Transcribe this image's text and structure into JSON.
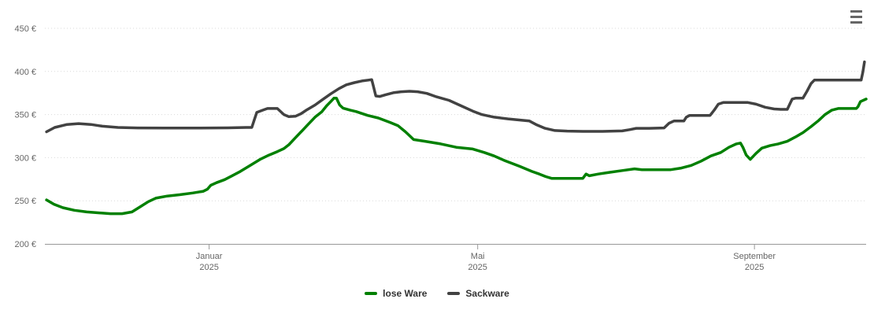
{
  "chart": {
    "menu_icon": "hamburger-icon",
    "background_color": "#ffffff",
    "axis_label_color": "#666666",
    "axis_line_color": "#999999",
    "gridline_color": "#d9d9d9",
    "legend_text_color": "#333333"
  },
  "chart_data": {
    "type": "line",
    "title": "",
    "xlabel": "",
    "ylabel": "",
    "y_unit": "€",
    "ylim": [
      200,
      450
    ],
    "y_ticks": [
      200,
      250,
      300,
      350,
      400,
      450
    ],
    "y_tick_labels": [
      "200 €",
      "250 €",
      "300 €",
      "350 €",
      "400 €",
      "450 €"
    ],
    "grid": "horizontal-dotted",
    "legend_position": "bottom-center",
    "x_ticks": [
      {
        "pos": 0.2,
        "line1": "Januar",
        "line2": "2025"
      },
      {
        "pos": 0.527,
        "line1": "Mai",
        "line2": "2025"
      },
      {
        "pos": 0.864,
        "line1": "September",
        "line2": "2025"
      }
    ],
    "series": [
      {
        "name": "lose Ware",
        "color": "#008000",
        "points": [
          [
            0.002,
            251
          ],
          [
            0.011,
            246
          ],
          [
            0.022,
            242
          ],
          [
            0.036,
            239
          ],
          [
            0.051,
            237
          ],
          [
            0.065,
            236
          ],
          [
            0.08,
            235
          ],
          [
            0.094,
            235
          ],
          [
            0.106,
            237
          ],
          [
            0.116,
            243
          ],
          [
            0.126,
            249
          ],
          [
            0.135,
            253
          ],
          [
            0.149,
            255.5
          ],
          [
            0.164,
            257
          ],
          [
            0.18,
            259
          ],
          [
            0.193,
            261
          ],
          [
            0.198,
            263.5
          ],
          [
            0.202,
            268
          ],
          [
            0.209,
            271
          ],
          [
            0.219,
            274.5
          ],
          [
            0.228,
            279
          ],
          [
            0.238,
            284
          ],
          [
            0.25,
            291
          ],
          [
            0.262,
            298
          ],
          [
            0.273,
            303
          ],
          [
            0.283,
            307
          ],
          [
            0.291,
            310.5
          ],
          [
            0.297,
            315
          ],
          [
            0.305,
            323
          ],
          [
            0.313,
            331
          ],
          [
            0.319,
            337
          ],
          [
            0.329,
            347
          ],
          [
            0.337,
            353
          ],
          [
            0.343,
            360
          ],
          [
            0.348,
            365
          ],
          [
            0.352,
            369
          ],
          [
            0.355,
            369
          ],
          [
            0.359,
            361
          ],
          [
            0.363,
            357.5
          ],
          [
            0.372,
            355
          ],
          [
            0.379,
            353.5
          ],
          [
            0.393,
            349
          ],
          [
            0.406,
            346
          ],
          [
            0.42,
            341
          ],
          [
            0.43,
            337
          ],
          [
            0.439,
            330
          ],
          [
            0.449,
            321
          ],
          [
            0.463,
            319
          ],
          [
            0.482,
            316
          ],
          [
            0.501,
            312
          ],
          [
            0.521,
            310
          ],
          [
            0.535,
            306
          ],
          [
            0.547,
            302
          ],
          [
            0.559,
            297
          ],
          [
            0.578,
            290
          ],
          [
            0.593,
            284
          ],
          [
            0.602,
            281
          ],
          [
            0.61,
            278
          ],
          [
            0.617,
            276
          ],
          [
            0.636,
            276
          ],
          [
            0.655,
            276
          ],
          [
            0.659,
            281
          ],
          [
            0.663,
            279
          ],
          [
            0.674,
            281
          ],
          [
            0.688,
            283
          ],
          [
            0.703,
            285
          ],
          [
            0.718,
            287
          ],
          [
            0.727,
            286
          ],
          [
            0.746,
            286
          ],
          [
            0.762,
            286
          ],
          [
            0.775,
            288
          ],
          [
            0.787,
            291
          ],
          [
            0.799,
            296
          ],
          [
            0.811,
            302
          ],
          [
            0.823,
            306
          ],
          [
            0.833,
            312
          ],
          [
            0.842,
            316
          ],
          [
            0.847,
            317
          ],
          [
            0.85,
            312
          ],
          [
            0.854,
            303
          ],
          [
            0.859,
            298
          ],
          [
            0.866,
            305
          ],
          [
            0.873,
            311
          ],
          [
            0.883,
            314
          ],
          [
            0.893,
            316
          ],
          [
            0.904,
            319
          ],
          [
            0.914,
            324
          ],
          [
            0.923,
            329
          ],
          [
            0.933,
            336
          ],
          [
            0.942,
            343
          ],
          [
            0.95,
            350
          ],
          [
            0.958,
            355
          ],
          [
            0.966,
            357
          ],
          [
            0.981,
            357
          ],
          [
            0.988,
            357
          ],
          [
            0.99,
            359
          ],
          [
            0.993,
            365
          ],
          [
            1.0,
            368
          ]
        ]
      },
      {
        "name": "Sackware",
        "color": "#424242",
        "points": [
          [
            0.002,
            330
          ],
          [
            0.012,
            335
          ],
          [
            0.027,
            338.5
          ],
          [
            0.041,
            339.5
          ],
          [
            0.056,
            338.5
          ],
          [
            0.07,
            336.5
          ],
          [
            0.089,
            335
          ],
          [
            0.113,
            334.5
          ],
          [
            0.147,
            334.3
          ],
          [
            0.185,
            334.3
          ],
          [
            0.223,
            334.6
          ],
          [
            0.245,
            335
          ],
          [
            0.252,
            335
          ],
          [
            0.255,
            344
          ],
          [
            0.258,
            352.5
          ],
          [
            0.265,
            355
          ],
          [
            0.271,
            357
          ],
          [
            0.283,
            357
          ],
          [
            0.291,
            350
          ],
          [
            0.297,
            347.5
          ],
          [
            0.305,
            348
          ],
          [
            0.312,
            351
          ],
          [
            0.319,
            355.5
          ],
          [
            0.329,
            361
          ],
          [
            0.339,
            368
          ],
          [
            0.348,
            374
          ],
          [
            0.358,
            380
          ],
          [
            0.367,
            384.5
          ],
          [
            0.377,
            387
          ],
          [
            0.386,
            389
          ],
          [
            0.394,
            390
          ],
          [
            0.398,
            390.5
          ],
          [
            0.4,
            383
          ],
          [
            0.403,
            371.5
          ],
          [
            0.408,
            371
          ],
          [
            0.415,
            373
          ],
          [
            0.425,
            375.5
          ],
          [
            0.434,
            376.5
          ],
          [
            0.444,
            377
          ],
          [
            0.454,
            376.5
          ],
          [
            0.465,
            374.5
          ],
          [
            0.477,
            370.5
          ],
          [
            0.492,
            366.5
          ],
          [
            0.506,
            360.5
          ],
          [
            0.521,
            354
          ],
          [
            0.532,
            350
          ],
          [
            0.547,
            347
          ],
          [
            0.564,
            345
          ],
          [
            0.58,
            343.5
          ],
          [
            0.59,
            342.5
          ],
          [
            0.599,
            338
          ],
          [
            0.609,
            334
          ],
          [
            0.621,
            331.5
          ],
          [
            0.636,
            330.8
          ],
          [
            0.655,
            330.5
          ],
          [
            0.679,
            330.5
          ],
          [
            0.703,
            331
          ],
          [
            0.712,
            332.5
          ],
          [
            0.72,
            334
          ],
          [
            0.736,
            334
          ],
          [
            0.754,
            334.5
          ],
          [
            0.76,
            340
          ],
          [
            0.766,
            342.5
          ],
          [
            0.778,
            342.5
          ],
          [
            0.781,
            347
          ],
          [
            0.785,
            349
          ],
          [
            0.81,
            349
          ],
          [
            0.815,
            355
          ],
          [
            0.82,
            362
          ],
          [
            0.826,
            364
          ],
          [
            0.856,
            364
          ],
          [
            0.866,
            362
          ],
          [
            0.877,
            358.5
          ],
          [
            0.888,
            356.5
          ],
          [
            0.896,
            356
          ],
          [
            0.904,
            356
          ],
          [
            0.907,
            362
          ],
          [
            0.91,
            368
          ],
          [
            0.914,
            369
          ],
          [
            0.923,
            369
          ],
          [
            0.928,
            377
          ],
          [
            0.933,
            386
          ],
          [
            0.937,
            390
          ],
          [
            0.952,
            390
          ],
          [
            0.971,
            390
          ],
          [
            0.994,
            390
          ],
          [
            0.996,
            399
          ],
          [
            0.998,
            411
          ]
        ]
      }
    ]
  }
}
